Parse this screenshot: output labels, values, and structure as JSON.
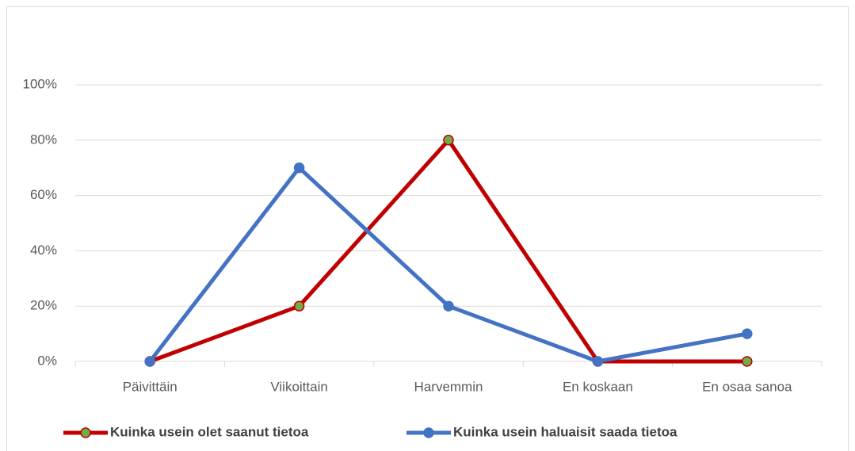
{
  "chart_data": {
    "type": "line",
    "categories": [
      "Päivittäin",
      "Viikoittain",
      "Harvemmin",
      "En koskaan",
      "En osaa sanoa"
    ],
    "series": [
      {
        "name": "Kuinka usein olet saanut tietoa",
        "color": "#c00000",
        "marker_color": "#70ad47",
        "values": [
          0,
          20,
          80,
          0,
          0
        ]
      },
      {
        "name": "Kuinka usein haluaisit saada tietoa",
        "color": "#4472c4",
        "marker_color": "#4472c4",
        "values": [
          0,
          70,
          20,
          0,
          10
        ]
      }
    ],
    "ylim": [
      0,
      100
    ],
    "yticks": [
      {
        "value": 0,
        "label": "0%"
      },
      {
        "value": 20,
        "label": "20%"
      },
      {
        "value": 40,
        "label": "40%"
      },
      {
        "value": 60,
        "label": "60%"
      },
      {
        "value": 80,
        "label": "80%"
      },
      {
        "value": 100,
        "label": "100%"
      }
    ],
    "grid": true,
    "legend": "bottom"
  }
}
